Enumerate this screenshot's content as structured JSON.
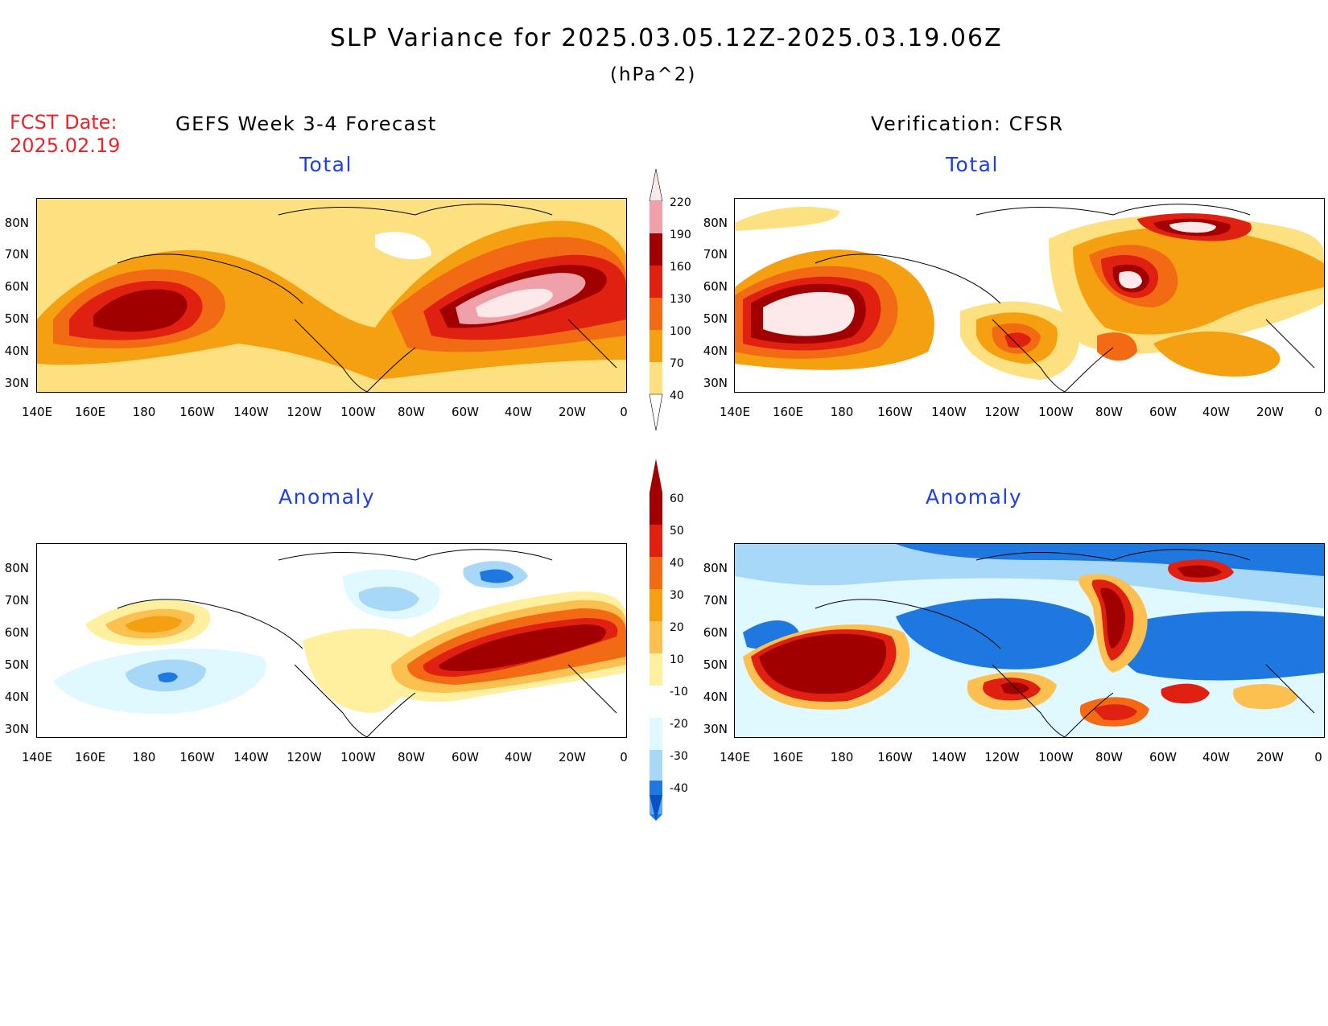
{
  "header": {
    "title": "SLP Variance for 2025.03.05.12Z-2025.03.19.06Z",
    "units": "(hPa^2)",
    "fcst_label": "FCST Date:",
    "fcst_date": "2025.02.19"
  },
  "panels": {
    "left_head": "GEFS Week 3-4 Forecast",
    "right_head": "Verification: CFSR",
    "total_title": "Total",
    "anomaly_title": "Anomaly"
  },
  "axes": {
    "lat_labels": [
      "80N",
      "70N",
      "60N",
      "50N",
      "40N",
      "30N"
    ],
    "lon_labels": [
      "140E",
      "160E",
      "180",
      "160W",
      "140W",
      "120W",
      "100W",
      "80W",
      "60W",
      "40W",
      "20W",
      "0"
    ]
  },
  "colorbar_total": {
    "levels": [
      "220",
      "190",
      "160",
      "130",
      "100",
      "70",
      "40"
    ],
    "colors": [
      "#fde8ea",
      "#f0a0a8",
      "#a00000",
      "#e02010",
      "#f26a14",
      "#f5a010",
      "#fde080"
    ]
  },
  "colorbar_anomaly": {
    "levels": [
      "60",
      "50",
      "40",
      "30",
      "20",
      "10",
      "-10",
      "-20",
      "-30",
      "-40"
    ],
    "warm_colors": [
      "#a00000",
      "#e02010",
      "#f26a14",
      "#f5a010",
      "#fcc050",
      "#fff0a0"
    ],
    "cool_colors": [
      "#e0f8ff",
      "#a8d8f8",
      "#5aa8f0",
      "#1e78e0",
      "#0a50c8"
    ]
  }
}
